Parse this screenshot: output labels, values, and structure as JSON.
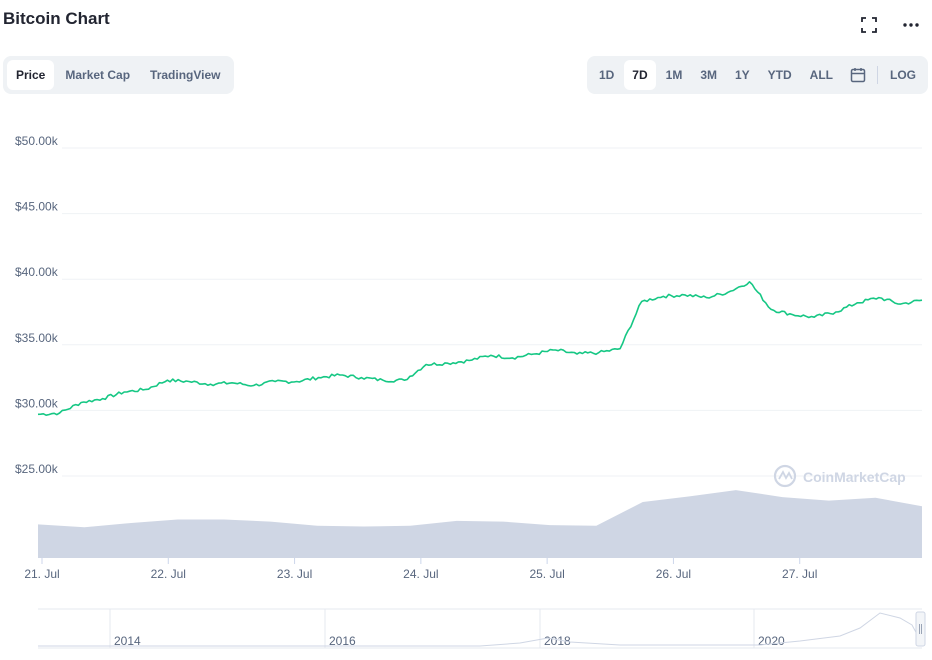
{
  "header": {
    "title": "Bitcoin Chart",
    "fullscreen_icon": "fullscreen-icon",
    "more_icon": "more-horizontal-icon"
  },
  "tabs": [
    {
      "label": "Price",
      "active": true
    },
    {
      "label": "Market Cap",
      "active": false
    },
    {
      "label": "TradingView",
      "active": false
    }
  ],
  "ranges": [
    {
      "label": "1D",
      "active": false
    },
    {
      "label": "7D",
      "active": true
    },
    {
      "label": "1M",
      "active": false
    },
    {
      "label": "3M",
      "active": false
    },
    {
      "label": "1Y",
      "active": false
    },
    {
      "label": "YTD",
      "active": false
    },
    {
      "label": "ALL",
      "active": false
    }
  ],
  "calendar_icon": "calendar-icon",
  "log_label": "LOG",
  "watermark": "CoinMarketCap",
  "colors": {
    "price_line": "#16c784",
    "volume_fill": "#cfd6e4",
    "grid": "#eff2f5",
    "axis_text": "#58667e"
  },
  "chart_data": {
    "type": "line",
    "y_ticks": [
      "$50.00k",
      "$45.00k",
      "$40.00k",
      "$35.00k",
      "$30.00k",
      "$25.00k"
    ],
    "y_tick_values": [
      50000,
      45000,
      40000,
      35000,
      30000,
      25000
    ],
    "x_ticks": [
      "21. Jul",
      "22. Jul",
      "23. Jul",
      "24. Jul",
      "25. Jul",
      "26. Jul",
      "27. Jul"
    ],
    "ylim": [
      25000,
      50000
    ],
    "series": [
      {
        "points": [
          [
            "21. Jul",
            29700
          ],
          [
            "",
            29800
          ],
          [
            "",
            30600
          ],
          [
            "",
            30900
          ],
          [
            "",
            31400
          ],
          [
            "",
            31600
          ],
          [
            "22. Jul",
            32300
          ],
          [
            "",
            32200
          ],
          [
            "",
            32000
          ],
          [
            "",
            32100
          ],
          [
            "",
            31900
          ],
          [
            "",
            32200
          ],
          [
            "23. Jul",
            32200
          ],
          [
            "",
            32500
          ],
          [
            "",
            32700
          ],
          [
            "",
            32500
          ],
          [
            "",
            32300
          ],
          [
            "",
            32300
          ],
          [
            "24. Jul",
            33500
          ],
          [
            "",
            33600
          ],
          [
            "",
            33800
          ],
          [
            "",
            34200
          ],
          [
            "",
            34000
          ],
          [
            "",
            34300
          ],
          [
            "25. Jul",
            34600
          ],
          [
            "",
            34300
          ],
          [
            "",
            34400
          ],
          [
            "",
            34700
          ],
          [
            "",
            38300
          ],
          [
            "",
            38700
          ],
          [
            "26. Jul",
            38800
          ],
          [
            "",
            38600
          ],
          [
            "",
            39000
          ],
          [
            "",
            39800
          ],
          [
            "",
            37700
          ],
          [
            "",
            37300
          ],
          [
            "27. Jul",
            37100
          ],
          [
            "",
            37500
          ],
          [
            "",
            38200
          ],
          [
            "",
            38600
          ],
          [
            "",
            38100
          ],
          [
            "",
            38400
          ]
        ]
      }
    ],
    "volume_series": {
      "name": "Volume",
      "relative_values": [
        0.48,
        0.44,
        0.5,
        0.55,
        0.55,
        0.52,
        0.46,
        0.45,
        0.46,
        0.53,
        0.52,
        0.47,
        0.46,
        0.8,
        0.88,
        0.97,
        0.87,
        0.82,
        0.86,
        0.74
      ]
    },
    "navigator": {
      "x_ticks": [
        "2014",
        "2016",
        "2018",
        "2020"
      ]
    }
  }
}
